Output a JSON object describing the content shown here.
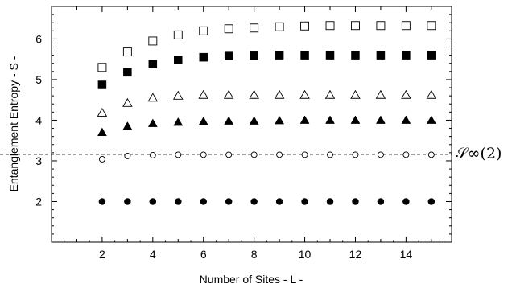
{
  "chart_data": {
    "type": "scatter",
    "title": "",
    "xlabel": "Number of Sites - L -",
    "ylabel": "Entanglement Entropy  - S -",
    "xlim": [
      0,
      15.8
    ],
    "ylim": [
      1,
      6.8
    ],
    "xticks": [
      2,
      4,
      6,
      8,
      10,
      12,
      14
    ],
    "yticks": [
      2,
      3,
      4,
      5,
      6
    ],
    "grid": false,
    "legend": "none",
    "x": [
      2,
      3,
      4,
      5,
      6,
      7,
      8,
      9,
      10,
      11,
      12,
      13,
      14,
      15
    ],
    "series": [
      {
        "marker": "open-square",
        "values": [
          5.3,
          5.68,
          5.95,
          6.1,
          6.2,
          6.25,
          6.27,
          6.3,
          6.32,
          6.33,
          6.33,
          6.33,
          6.33,
          6.33
        ]
      },
      {
        "marker": "filled-square",
        "values": [
          4.87,
          5.18,
          5.38,
          5.48,
          5.55,
          5.58,
          5.59,
          5.6,
          5.6,
          5.6,
          5.6,
          5.6,
          5.6,
          5.6
        ]
      },
      {
        "marker": "open-triangle",
        "values": [
          4.18,
          4.42,
          4.55,
          4.6,
          4.62,
          4.62,
          4.62,
          4.62,
          4.62,
          4.62,
          4.62,
          4.62,
          4.62,
          4.62
        ]
      },
      {
        "marker": "filled-triangle",
        "values": [
          3.7,
          3.85,
          3.92,
          3.95,
          3.97,
          3.98,
          3.98,
          3.99,
          4.0,
          4.0,
          4.0,
          4.0,
          4.0,
          4.0
        ]
      },
      {
        "marker": "open-circle",
        "values": [
          3.04,
          3.12,
          3.14,
          3.15,
          3.15,
          3.15,
          3.15,
          3.15,
          3.15,
          3.15,
          3.15,
          3.15,
          3.15,
          3.15
        ]
      },
      {
        "marker": "filled-circle",
        "values": [
          2.0,
          2.0,
          2.0,
          2.0,
          2.0,
          2.0,
          2.0,
          2.0,
          2.0,
          2.0,
          2.0,
          2.0,
          2.0,
          2.0
        ]
      }
    ],
    "reference_line": {
      "y": 3.16,
      "style": "dashed",
      "label": "𝒮∞(2)"
    }
  }
}
